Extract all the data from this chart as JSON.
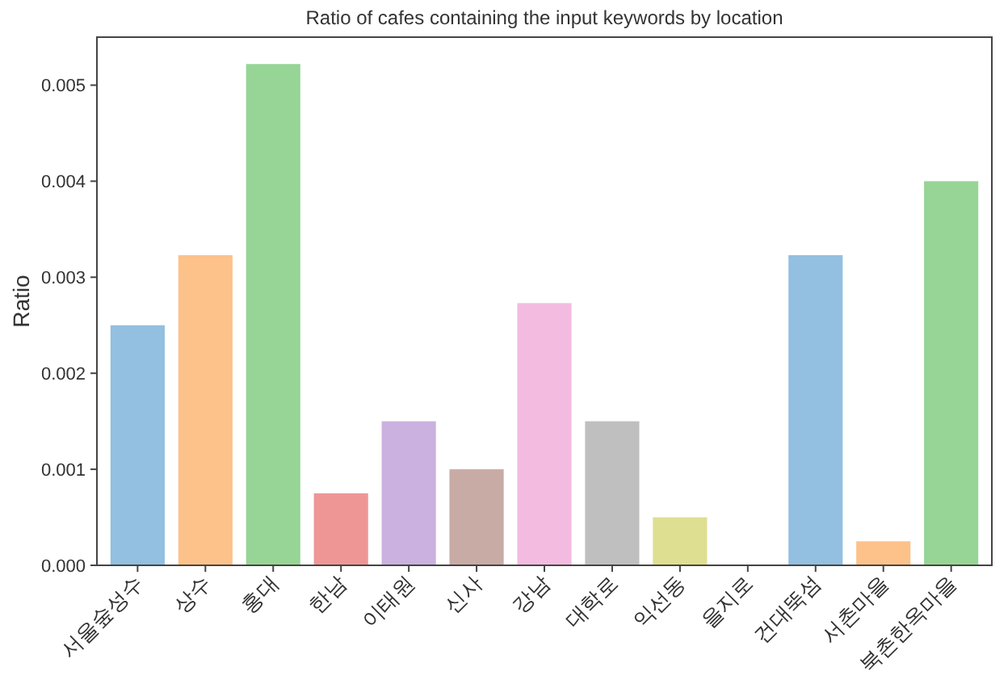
{
  "chart_data": {
    "type": "bar",
    "title": "Ratio of cafes containing the input keywords by location",
    "ylabel": "Ratio",
    "categories": [
      "서울숲성수",
      "상수",
      "홍대",
      "한남",
      "이태원",
      "신사",
      "강남",
      "대학로",
      "익선동",
      "을지로",
      "건대뚝섬",
      "서촌마을",
      "북촌한옥마을"
    ],
    "values": [
      0.0025,
      0.00323,
      0.00522,
      0.00075,
      0.0015,
      0.001,
      0.00273,
      0.0015,
      0.0005,
      0,
      0.00323,
      0.00025,
      0.004
    ],
    "colors": [
      "#93bfe0",
      "#fdc28a",
      "#96d596",
      "#ee9696",
      "#cab1df",
      "#c9aba5",
      "#f3bbe0",
      "#bfbfbf",
      "#dfdf92",
      "#8bdfe7",
      "#93bfe0",
      "#fdc28a",
      "#96d596"
    ],
    "ylim": [
      0,
      0.0055
    ],
    "yticks": [
      {
        "value": 0,
        "label": "0.000"
      },
      {
        "value": 0.001,
        "label": "0.001"
      },
      {
        "value": 0.002,
        "label": "0.002"
      },
      {
        "value": 0.003,
        "label": "0.003"
      },
      {
        "value": 0.004,
        "label": "0.004"
      },
      {
        "value": 0.005,
        "label": "0.005"
      }
    ]
  }
}
